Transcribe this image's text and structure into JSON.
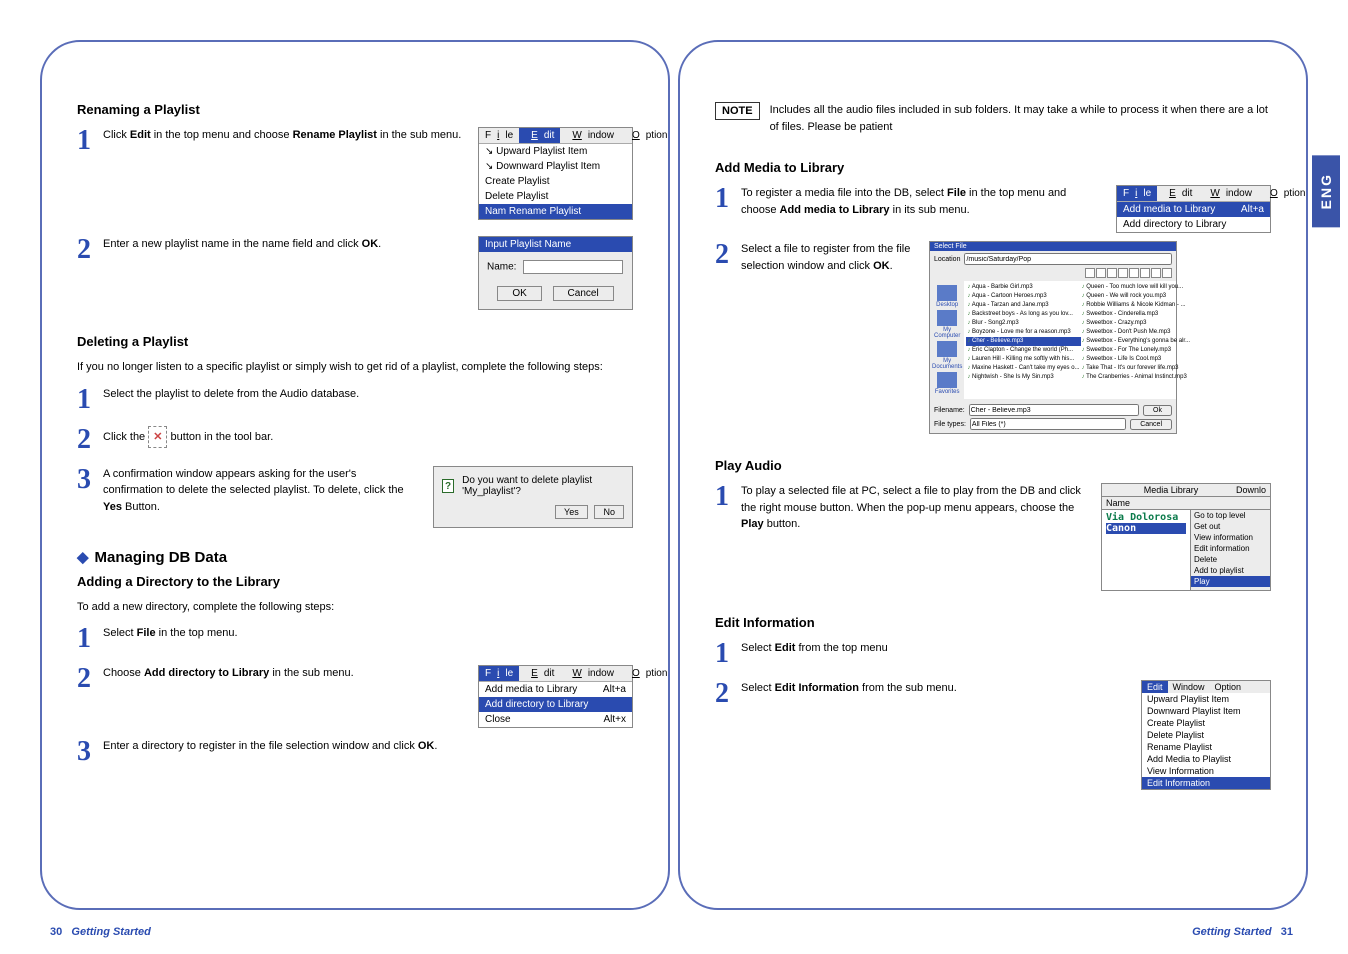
{
  "lang_tab": "ENG",
  "left": {
    "s1_title": "Renaming a Playlist",
    "s1_step1": "Click <b>Edit</b> in the top menu and choose <b>Rename Playlist</b> in the sub menu.",
    "s1_menu": {
      "bar": [
        "File",
        "Edit",
        "Window",
        "Option"
      ],
      "items": [
        "Upward Playlist Item",
        "Downward Playlist Item",
        "Create Playlist",
        "Delete Playlist",
        "Rename Playlist"
      ],
      "selected": "Rename Playlist",
      "name_prefix": "Nam"
    },
    "s1_step2": "Enter a new playlist name in the name field and click <b>OK</b>.",
    "s1_dialog": {
      "title": "Input Playlist Name",
      "label": "Name:",
      "ok": "OK",
      "cancel": "Cancel"
    },
    "s2_title": "Deleting a Playlist",
    "s2_intro": "If you no longer listen to a specific playlist or simply wish to get rid of a playlist, complete the following steps:",
    "s2_step1": "Select the playlist to delete from the Audio database.",
    "s2_step2_a": "Click the ",
    "s2_step2_b": " button in the tool bar.",
    "s2_btn_glyph": "✕",
    "s2_step3": "A confirmation window appears asking for the user's confirmation to delete the selected playlist. To delete, click the <b>Yes</b> Button.",
    "s2_confirm": {
      "msg": "Do you want to delete playlist  'My_playlist'?",
      "yes": "Yes",
      "no": "No"
    },
    "s3_heading": "Managing DB Data",
    "s3_title": "Adding a Directory to the Library",
    "s3_intro": "To add a new directory, complete the following steps:",
    "s3_step1": "Select <b>File</b> in the top menu.",
    "s3_step2": "Choose <b>Add directory to Library</b> in the sub menu.",
    "s3_menu": {
      "bar": [
        "File",
        "Edit",
        "Window",
        "Option"
      ],
      "items": [
        [
          "Add media to Library",
          "Alt+a"
        ],
        [
          "Add directory to Library",
          ""
        ],
        [
          "Close",
          "Alt+x"
        ]
      ],
      "selected": "Add directory to Library"
    },
    "s3_step3": "Enter a directory to register in the file selection window and click <b>OK</b>.",
    "footer_num": "30",
    "footer_title": "Getting Started"
  },
  "right": {
    "note": "Includes all the audio files included in sub folders. It may take a while to process it when there are a lot of files. Please be patient",
    "note_label": "NOTE",
    "s1_title": "Add Media to Library",
    "s1_step1": "To register a media file into the DB, select <b>File</b> in the top menu and choose <b>Add media to Library</b> in its sub menu.",
    "s1_menu": {
      "bar": [
        "File",
        "Edit",
        "Window",
        "Option"
      ],
      "items": [
        [
          "Add media to Library",
          "Alt+a"
        ],
        [
          "Add directory to Library",
          ""
        ]
      ],
      "selected": "Add media to Library"
    },
    "s1_step2": "Select a file to register from the file selection window and click <b>OK</b>.",
    "file_browser": {
      "title": "Select File",
      "location_label": "Location",
      "location": "/music/Saturday/Pop",
      "side": [
        "Desktop",
        "My Computer",
        "My Documents",
        "Favorites"
      ],
      "col1": [
        "Aqua - Barbie Girl.mp3",
        "Aqua - Cartoon Heroes.mp3",
        "Aqua - Tarzan and Jane.mp3",
        "Backstreet boys - As long as you lov...",
        "Blur - Song2.mp3",
        "Boyzone - Love me for a reason.mp3",
        "Cher - Believe.mp3",
        "Eric Clapton - Change the world (Ph...",
        "Lauren Hill - Killing me softly with his...",
        "Maxine Haskett - Can't take my eyes o...",
        "Nightwish - She Is My Sin.mp3"
      ],
      "col1_sel": "Cher - Believe.mp3",
      "col2": [
        "Queen - Too much love will kill you...",
        "Queen - We will rock you.mp3",
        "Robbie Williams & Nicole Kidman - ...",
        "Sweetbox - Cinderella.mp3",
        "Sweetbox - Crazy.mp3",
        "Sweetbox - Don't Push Me.mp3",
        "Sweetbox - Everything's gonna be alr...",
        "Sweetbox - For The Lonely.mp3",
        "Sweetbox - Life Is Cool.mp3",
        "Take That - It's our forever life.mp3",
        "The Cranberries - Animal Instinct.mp3"
      ],
      "filename_label": "Filename:",
      "filename": "Cher - Believe.mp3",
      "filetype_label": "File types:",
      "filetype": "All Files (*)",
      "ok": "Ok",
      "cancel": "Cancel"
    },
    "s2_title": "Play Audio",
    "s2_step1": "To play a selected file at PC, select a file to play from the DB and click the right mouse button. When the pop-up menu appears, choose the <b>Play</b> button.",
    "media_lib": {
      "title": "Media Library",
      "downl": "Downlo",
      "col_head": "Name",
      "items": [
        "Via Dolorosa",
        "Canon"
      ],
      "sel": "Canon",
      "ctx": [
        "Go to top level",
        "Get out",
        "View information",
        "Edit information",
        "Delete",
        "Add to playlist",
        "Play"
      ],
      "ctx_sel": "Play"
    },
    "s3_title": "Edit Information",
    "s3_step1": "Select <b>Edit</b> from the top menu",
    "s3_step2": "Select <b>Edit Information</b> from the sub menu.",
    "edit_menu": {
      "bar": [
        "Edit",
        "Window",
        "Option"
      ],
      "bar_sel": "Edit",
      "items": [
        "Upward Playlist Item",
        "Downward Playlist Item",
        "Create Playlist",
        "Delete Playlist",
        "Rename Playlist",
        "Add Media to Playlist",
        "View Information",
        "Edit Information"
      ],
      "sel": "Edit Information"
    },
    "footer_title": "Getting Started",
    "footer_num": "31"
  }
}
